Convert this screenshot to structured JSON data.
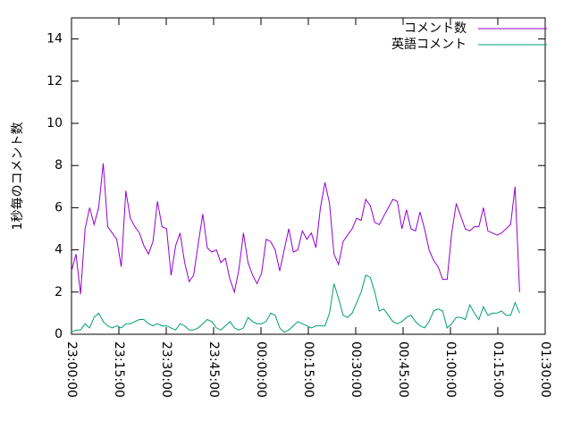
{
  "chart_data": {
    "type": "line",
    "ylabel": "1秒毎のコメント数",
    "x": [
      "23:00:00",
      "23:01:26",
      "23:02:52",
      "23:04:18",
      "23:05:44",
      "23:07:10",
      "23:08:36",
      "23:10:02",
      "23:11:28",
      "23:12:54",
      "23:14:20",
      "23:15:46",
      "23:17:12",
      "23:18:38",
      "23:20:04",
      "23:21:30",
      "23:22:56",
      "23:24:22",
      "23:25:48",
      "23:27:14",
      "23:28:40",
      "23:30:06",
      "23:31:32",
      "23:32:58",
      "23:34:24",
      "23:35:50",
      "23:37:16",
      "23:38:42",
      "23:40:08",
      "23:41:34",
      "23:43:00",
      "23:44:26",
      "23:45:52",
      "23:47:18",
      "23:48:44",
      "23:50:10",
      "23:51:36",
      "23:53:02",
      "23:54:28",
      "23:55:54",
      "23:57:20",
      "23:58:46",
      "00:00:12",
      "00:01:38",
      "00:03:04",
      "00:04:30",
      "00:05:56",
      "00:07:22",
      "00:08:48",
      "00:10:14",
      "00:11:40",
      "00:13:06",
      "00:14:32",
      "00:15:58",
      "00:17:24",
      "00:18:50",
      "00:20:16",
      "00:21:42",
      "00:23:08",
      "00:24:34",
      "00:26:00",
      "00:27:26",
      "00:28:52",
      "00:30:18",
      "00:31:44",
      "00:33:10",
      "00:34:36",
      "00:36:02",
      "00:37:28",
      "00:38:54",
      "00:40:20",
      "00:41:46",
      "00:43:12",
      "00:44:38",
      "00:46:04",
      "00:47:30",
      "00:48:56",
      "00:50:22",
      "00:51:48",
      "00:53:14",
      "00:54:40",
      "00:56:06",
      "00:57:32",
      "00:58:58",
      "01:00:24",
      "01:01:50",
      "01:03:16",
      "01:04:42",
      "01:06:08",
      "01:07:34",
      "01:09:00",
      "01:10:26",
      "01:11:52",
      "01:13:18",
      "01:14:44",
      "01:16:10",
      "01:17:36",
      "01:19:02",
      "01:20:28",
      "01:21:54"
    ],
    "series": [
      {
        "name": "コメント数",
        "color": "#9400d3",
        "values": [
          3.0,
          3.8,
          1.9,
          5.0,
          6.0,
          5.2,
          6.0,
          8.1,
          5.1,
          4.8,
          4.5,
          3.2,
          6.8,
          5.5,
          5.1,
          4.8,
          4.2,
          3.8,
          4.4,
          6.3,
          5.1,
          5.0,
          2.8,
          4.2,
          4.8,
          3.4,
          2.5,
          2.8,
          4.3,
          5.7,
          4.1,
          3.9,
          4.0,
          3.4,
          3.6,
          2.6,
          2.0,
          3.1,
          4.8,
          3.4,
          2.8,
          2.4,
          2.9,
          4.5,
          4.4,
          4.0,
          3.0,
          4.0,
          5.0,
          3.9,
          4.0,
          4.9,
          4.5,
          4.8,
          4.1,
          6.0,
          7.2,
          6.2,
          3.8,
          3.3,
          4.4,
          4.7,
          5.0,
          5.5,
          5.4,
          6.4,
          6.1,
          5.3,
          5.2,
          5.6,
          6.0,
          6.4,
          6.3,
          5.0,
          5.9,
          5.0,
          4.9,
          5.8,
          5.0,
          4.0,
          3.5,
          3.2,
          2.6,
          2.6,
          4.8,
          6.2,
          5.6,
          5.0,
          4.9,
          5.1,
          5.1,
          6.0,
          4.9,
          4.8,
          4.7,
          4.8,
          5.0,
          5.2,
          7.0,
          2.0
        ]
      },
      {
        "name": "英語コメント",
        "color": "#009e73",
        "values": [
          0.1,
          0.2,
          0.2,
          0.5,
          0.3,
          0.8,
          1.0,
          0.6,
          0.4,
          0.3,
          0.4,
          0.3,
          0.5,
          0.5,
          0.6,
          0.7,
          0.7,
          0.5,
          0.4,
          0.5,
          0.4,
          0.4,
          0.3,
          0.2,
          0.5,
          0.4,
          0.2,
          0.2,
          0.3,
          0.5,
          0.7,
          0.6,
          0.3,
          0.2,
          0.4,
          0.6,
          0.3,
          0.2,
          0.3,
          0.8,
          0.6,
          0.5,
          0.5,
          0.6,
          1.0,
          0.9,
          0.3,
          0.1,
          0.2,
          0.4,
          0.6,
          0.5,
          0.4,
          0.3,
          0.4,
          0.4,
          0.4,
          1.0,
          2.4,
          1.7,
          0.9,
          0.8,
          1.0,
          1.5,
          2.0,
          2.8,
          2.7,
          2.0,
          1.1,
          1.2,
          0.9,
          0.6,
          0.5,
          0.6,
          0.8,
          0.9,
          0.6,
          0.4,
          0.3,
          0.6,
          1.1,
          1.2,
          1.1,
          0.3,
          0.5,
          0.8,
          0.8,
          0.7,
          1.4,
          1.0,
          0.7,
          1.3,
          0.9,
          1.0,
          1.0,
          1.1,
          0.9,
          0.9,
          1.5,
          1.0
        ]
      }
    ],
    "xlim": [
      "23:00:00",
      "01:30:00"
    ],
    "xticks": [
      "23:00:00",
      "23:15:00",
      "23:30:00",
      "23:45:00",
      "00:00:00",
      "00:15:00",
      "00:30:00",
      "00:45:00",
      "01:00:00",
      "01:15:00",
      "01:30:00"
    ],
    "ylim": [
      0,
      15
    ],
    "yticks": [
      0,
      2,
      4,
      6,
      8,
      10,
      12,
      14
    ],
    "legend": "top-right"
  }
}
